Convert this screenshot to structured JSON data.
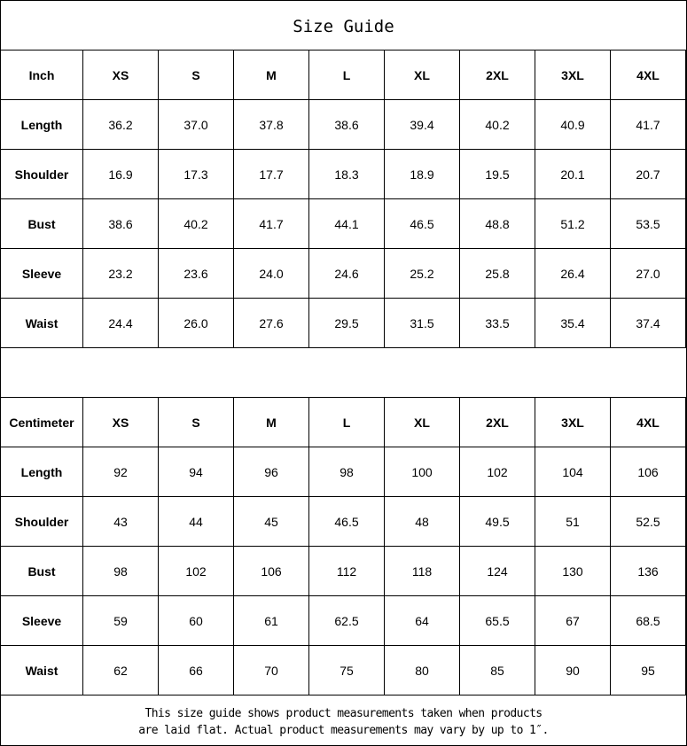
{
  "title": "Size Guide",
  "sizes": [
    "XS",
    "S",
    "M",
    "L",
    "XL",
    "2XL",
    "3XL",
    "4XL"
  ],
  "tables": [
    {
      "unit": "Inch",
      "rows": [
        {
          "label": "Length",
          "values": [
            "36.2",
            "37.0",
            "37.8",
            "38.6",
            "39.4",
            "40.2",
            "40.9",
            "41.7"
          ]
        },
        {
          "label": "Shoulder",
          "values": [
            "16.9",
            "17.3",
            "17.7",
            "18.3",
            "18.9",
            "19.5",
            "20.1",
            "20.7"
          ]
        },
        {
          "label": "Bust",
          "values": [
            "38.6",
            "40.2",
            "41.7",
            "44.1",
            "46.5",
            "48.8",
            "51.2",
            "53.5"
          ]
        },
        {
          "label": "Sleeve",
          "values": [
            "23.2",
            "23.6",
            "24.0",
            "24.6",
            "25.2",
            "25.8",
            "26.4",
            "27.0"
          ]
        },
        {
          "label": "Waist",
          "values": [
            "24.4",
            "26.0",
            "27.6",
            "29.5",
            "31.5",
            "33.5",
            "35.4",
            "37.4"
          ]
        }
      ]
    },
    {
      "unit": "Centimeter",
      "rows": [
        {
          "label": "Length",
          "values": [
            "92",
            "94",
            "96",
            "98",
            "100",
            "102",
            "104",
            "106"
          ]
        },
        {
          "label": "Shoulder",
          "values": [
            "43",
            "44",
            "45",
            "46.5",
            "48",
            "49.5",
            "51",
            "52.5"
          ]
        },
        {
          "label": "Bust",
          "values": [
            "98",
            "102",
            "106",
            "112",
            "118",
            "124",
            "130",
            "136"
          ]
        },
        {
          "label": "Sleeve",
          "values": [
            "59",
            "60",
            "61",
            "62.5",
            "64",
            "65.5",
            "67",
            "68.5"
          ]
        },
        {
          "label": "Waist",
          "values": [
            "62",
            "66",
            "70",
            "75",
            "80",
            "85",
            "90",
            "95"
          ]
        }
      ]
    }
  ],
  "footer": {
    "line1": "This size guide shows product measurements taken when products",
    "line2": "are laid flat. Actual product measurements may vary by up to 1″."
  }
}
